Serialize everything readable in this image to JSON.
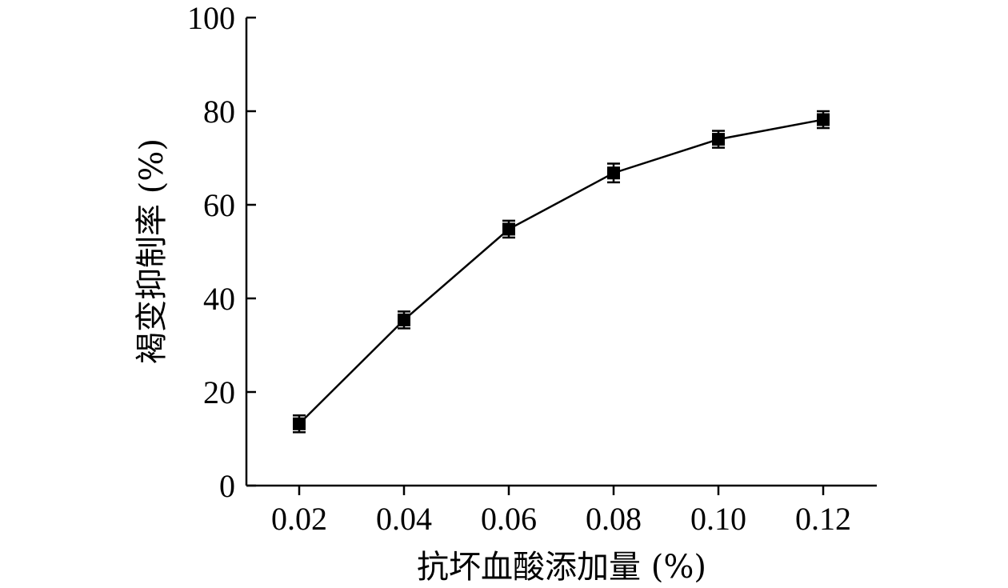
{
  "chart_data": {
    "type": "line",
    "xlabel": "抗坏血酸添加量 (%)",
    "ylabel": "褐变抑制率 (%)",
    "x": [
      0.02,
      0.04,
      0.06,
      0.08,
      0.1,
      0.12
    ],
    "x_tick_labels": [
      "0.02",
      "0.04",
      "0.06",
      "0.08",
      "0.10",
      "0.12"
    ],
    "y_ticks": [
      0,
      20,
      40,
      60,
      80,
      100
    ],
    "y_tick_labels": [
      "0",
      "20",
      "40",
      "60",
      "80",
      "100"
    ],
    "ylim": [
      0,
      100
    ],
    "series": [
      {
        "values": [
          13.2,
          35.4,
          54.8,
          66.8,
          74.0,
          78.2
        ],
        "error": [
          1.8,
          1.8,
          1.8,
          2.0,
          1.8,
          1.8
        ],
        "marker": "square",
        "color": "#000000"
      }
    ],
    "grid": false,
    "legend": "none"
  }
}
